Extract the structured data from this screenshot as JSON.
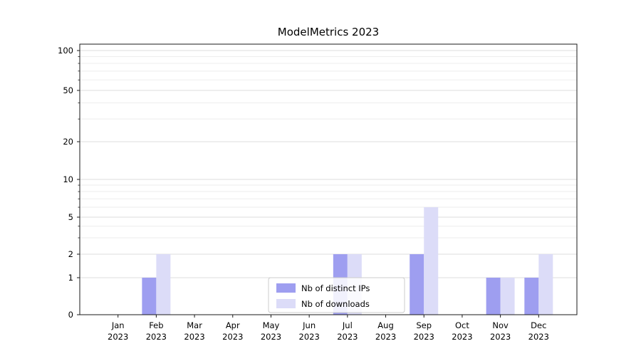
{
  "chart_data": {
    "type": "bar",
    "title": "ModelMetrics 2023",
    "categories": [
      "Jan 2023",
      "Feb 2023",
      "Mar 2023",
      "Apr 2023",
      "May 2023",
      "Jun 2023",
      "Jul 2023",
      "Aug 2023",
      "Sep 2023",
      "Oct 2023",
      "Nov 2023",
      "Dec 2023"
    ],
    "series": [
      {
        "name": "Nb of distinct IPs",
        "color": "#9e9ef0",
        "values": [
          0,
          1,
          0,
          0,
          0,
          0,
          2,
          0,
          2,
          0,
          1,
          1
        ]
      },
      {
        "name": "Nb of downloads",
        "color": "#dcdcf8",
        "values": [
          0,
          2,
          0,
          0,
          0,
          0,
          2,
          0,
          6,
          0,
          1,
          2
        ]
      }
    ],
    "yscale": "symlog",
    "ytick_values": [
      0,
      1,
      2,
      5,
      10,
      20,
      50,
      100
    ],
    "ylim": [
      0,
      115
    ],
    "xlabel": "",
    "ylabel": "",
    "grid": "horizontal",
    "legend_position": "lower-center-inside"
  }
}
